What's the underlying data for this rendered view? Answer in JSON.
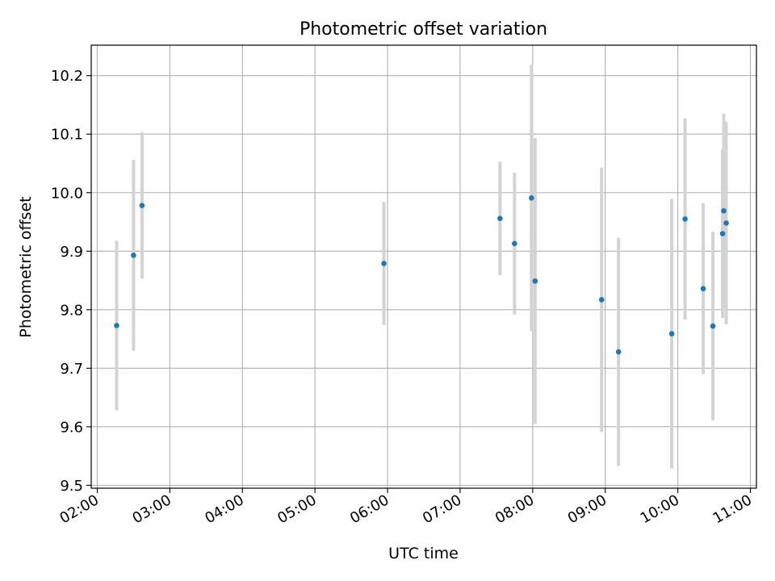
{
  "chart_data": {
    "type": "scatter",
    "title": "Photometric offset variation",
    "xlabel": "UTC time",
    "ylabel": "Photometric offset",
    "x_axis": {
      "scale": "time",
      "range": [
        "01:55",
        "11:05"
      ],
      "ticks": [
        "02:00",
        "03:00",
        "04:00",
        "05:00",
        "06:00",
        "07:00",
        "08:00",
        "09:00",
        "10:00",
        "11:00"
      ],
      "tick_label_rotation": 30
    },
    "y_axis": {
      "range": [
        9.495,
        10.252
      ],
      "ticks": [
        9.5,
        9.6,
        9.7,
        9.8,
        9.9,
        10.0,
        10.1,
        10.2
      ],
      "tick_labels": [
        "9.5",
        "9.6",
        "9.7",
        "9.8",
        "9.9",
        "10.0",
        "10.1",
        "10.2"
      ]
    },
    "grid": true,
    "legend": "none",
    "colors": {
      "points": "#1f77b4",
      "error_bars": "#d3d3d3",
      "grid": "#b0b0b0"
    },
    "points": [
      {
        "t": "02:16",
        "y": 9.773,
        "err": 0.145
      },
      {
        "t": "02:30",
        "y": 9.893,
        "err": 0.163
      },
      {
        "t": "02:37",
        "y": 9.978,
        "err": 0.125
      },
      {
        "t": "05:57",
        "y": 9.879,
        "err": 0.105
      },
      {
        "t": "07:33",
        "y": 9.956,
        "err": 0.097
      },
      {
        "t": "07:45",
        "y": 9.913,
        "err": 0.121
      },
      {
        "t": "07:59",
        "y": 9.991,
        "err": 0.228
      },
      {
        "t": "08:02",
        "y": 9.849,
        "err": 0.244
      },
      {
        "t": "08:57",
        "y": 9.817,
        "err": 0.226
      },
      {
        "t": "09:11",
        "y": 9.728,
        "err": 0.195
      },
      {
        "t": "09:55",
        "y": 9.759,
        "err": 0.23
      },
      {
        "t": "10:06",
        "y": 9.955,
        "err": 0.172
      },
      {
        "t": "10:21",
        "y": 9.836,
        "err": 0.146
      },
      {
        "t": "10:29",
        "y": 9.772,
        "err": 0.161
      },
      {
        "t": "10:37",
        "y": 9.93,
        "err": 0.144
      },
      {
        "t": "10:38",
        "y": 9.969,
        "err": 0.166
      },
      {
        "t": "10:40",
        "y": 9.948,
        "err": 0.173
      }
    ]
  }
}
